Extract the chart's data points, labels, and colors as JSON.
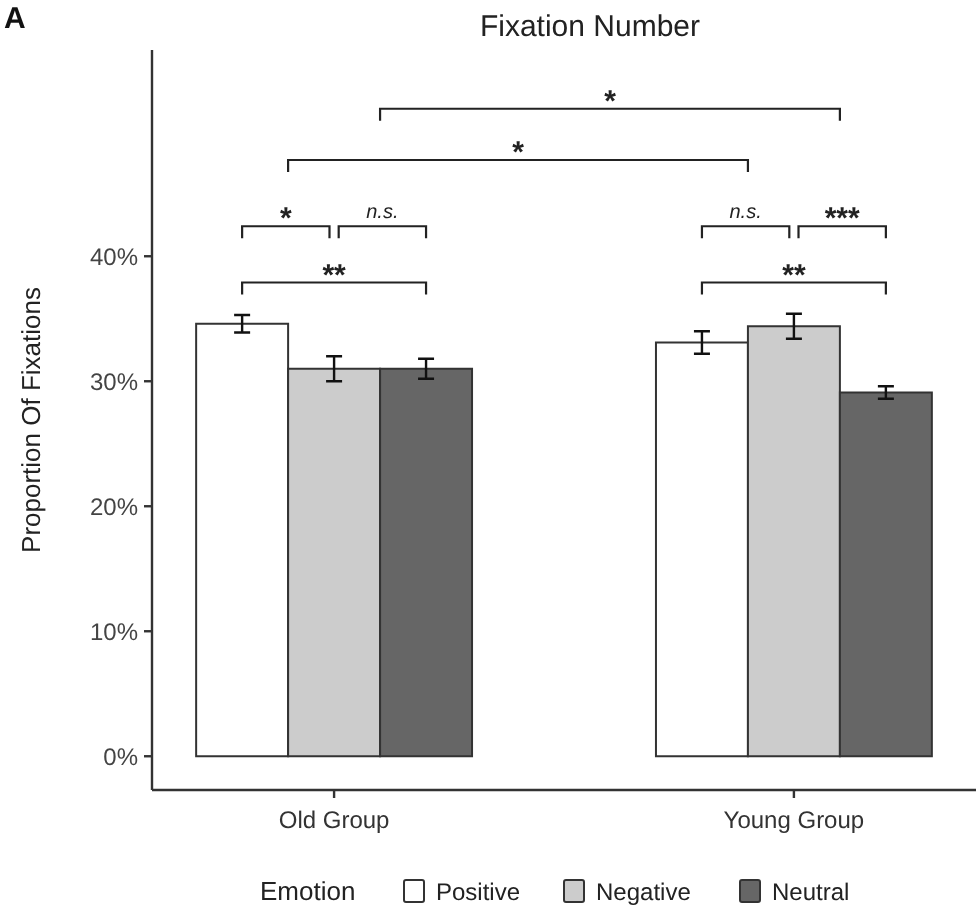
{
  "chart_data": {
    "type": "bar",
    "title": "Fixation Number",
    "ylabel": "Proportion Of Fixations",
    "legend_title": "Emotion",
    "legend": "bottom",
    "categories": [
      "Old Group",
      "Young Group"
    ],
    "series": [
      {
        "name": "Positive",
        "color": "#ffffff",
        "values": [
          34.6,
          33.1
        ],
        "errors": [
          0.7,
          0.9
        ]
      },
      {
        "name": "Negative",
        "color": "#cccccc",
        "values": [
          31.0,
          34.4
        ],
        "errors": [
          1.0,
          1.0
        ]
      },
      {
        "name": "Neutral",
        "color": "#666666",
        "values": [
          31.0,
          29.1
        ],
        "errors": [
          0.8,
          0.5
        ]
      }
    ],
    "ylim": [
      -2.7,
      56.5
    ],
    "yticks": [
      {
        "value": 0,
        "label": "0%"
      },
      {
        "value": 10,
        "label": "10%"
      },
      {
        "value": 20,
        "label": "20%"
      },
      {
        "value": 30,
        "label": "30%"
      },
      {
        "value": 40,
        "label": "40%"
      }
    ],
    "grid": false,
    "annotations": [
      "A",
      "*",
      "*",
      "*",
      "n.s.",
      "**",
      "n.s.",
      "***",
      "**"
    ]
  }
}
